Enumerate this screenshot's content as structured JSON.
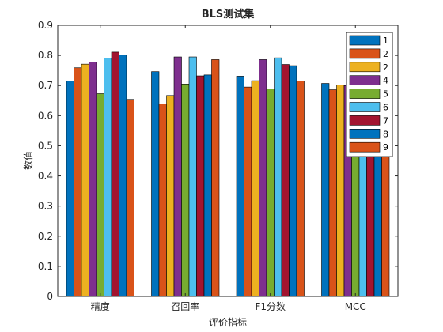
{
  "chart_data": {
    "type": "bar",
    "title": "BLS测试集",
    "xlabel": "评价指标",
    "ylabel": "数值",
    "categories": [
      "精度",
      "召回率",
      "F1分数",
      "MCC"
    ],
    "ylim": [
      0,
      0.9
    ],
    "yticks": [
      "0",
      "0.1",
      "0.2",
      "0.3",
      "0.4",
      "0.5",
      "0.6",
      "0.7",
      "0.8",
      "0.9"
    ],
    "grid": false,
    "legend_position": "top-right",
    "series": [
      {
        "name": "1",
        "color": "#0072BD",
        "values": [
          0.715,
          0.746,
          0.731,
          0.707
        ]
      },
      {
        "name": "2",
        "color": "#D95319",
        "values": [
          0.759,
          0.639,
          0.695,
          0.686
        ]
      },
      {
        "name": "2",
        "color": "#EDB120",
        "values": [
          0.771,
          0.667,
          0.716,
          0.702
        ]
      },
      {
        "name": "4",
        "color": "#7E2F8E",
        "values": [
          0.778,
          0.795,
          0.786,
          0.7
        ]
      },
      {
        "name": "5",
        "color": "#77AC30",
        "values": [
          0.673,
          0.705,
          0.689,
          0.69
        ]
      },
      {
        "name": "6",
        "color": "#4DBEEE",
        "values": [
          0.791,
          0.795,
          0.792,
          0.72
        ]
      },
      {
        "name": "7",
        "color": "#A2142F",
        "values": [
          0.811,
          0.732,
          0.77,
          0.71
        ]
      },
      {
        "name": "8",
        "color": "#0072BD",
        "values": [
          0.801,
          0.735,
          0.766,
          0.705
        ]
      },
      {
        "name": "9",
        "color": "#D95319",
        "values": [
          0.654,
          0.786,
          0.715,
          0.645
        ]
      }
    ]
  }
}
